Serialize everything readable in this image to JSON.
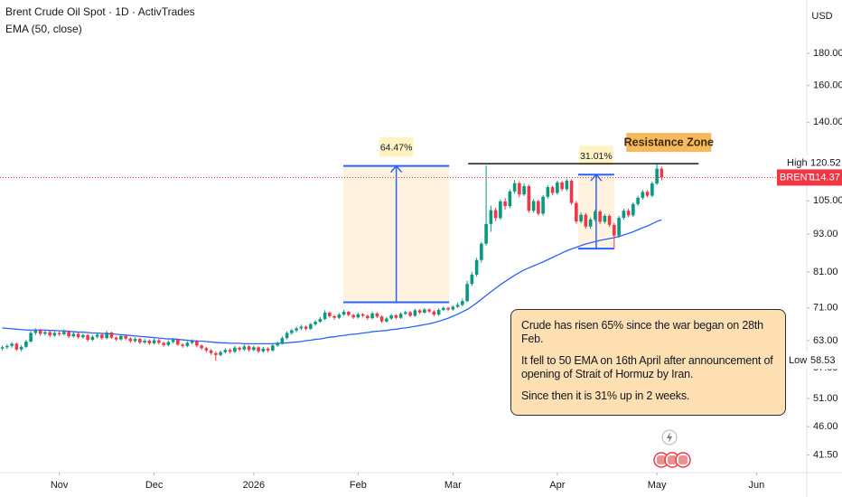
{
  "chart_data": {
    "type": "candlestick",
    "title": "Brent Crude Oil Spot · 1D · ActivTrades",
    "axis_label": "USD",
    "log_scale": true,
    "grid": false,
    "xlim": [
      -0.5,
      169.6
    ],
    "xticks": [
      {
        "value": 12,
        "label": "Nov"
      },
      {
        "value": 32,
        "label": "Dec"
      },
      {
        "value": 53,
        "label": "2026"
      },
      {
        "value": 75,
        "label": "Feb"
      },
      {
        "value": 95,
        "label": "Mar"
      },
      {
        "value": 117,
        "label": "Apr"
      },
      {
        "value": 138,
        "label": "May"
      },
      {
        "value": 159,
        "label": "Jun"
      }
    ],
    "ylim": [
      38.9,
      218.8
    ],
    "yticks": [
      {
        "value": 180,
        "label": "180.00"
      },
      {
        "value": 160,
        "label": "160.00"
      },
      {
        "value": 140,
        "label": "140.00"
      },
      {
        "value": 105,
        "label": "105.00"
      },
      {
        "value": 93,
        "label": "93.00"
      },
      {
        "value": 81,
        "label": "81.00"
      },
      {
        "value": 71,
        "label": "71.00"
      },
      {
        "value": 63,
        "label": "63.00"
      },
      {
        "value": 57,
        "label": "57.00"
      },
      {
        "value": 51,
        "label": "51.00"
      },
      {
        "value": 46,
        "label": "46.00"
      },
      {
        "value": 41.5,
        "label": "41.50"
      }
    ],
    "series": [
      {
        "type": "candlestick",
        "up_color": "#089981",
        "down_color": "#f23645",
        "ohlc": [
          [
            61.2,
            61.9,
            60.8,
            61.5
          ],
          [
            61.5,
            62.2,
            61.1,
            61.8
          ],
          [
            61.8,
            62.7,
            61.4,
            62.3
          ],
          [
            62.3,
            62.6,
            60.7,
            61.0
          ],
          [
            61.0,
            62.0,
            60.6,
            61.6
          ],
          [
            61.6,
            63.2,
            61.3,
            62.8
          ],
          [
            62.8,
            65.3,
            62.5,
            64.8
          ],
          [
            64.8,
            65.9,
            64.3,
            65.4
          ],
          [
            65.4,
            65.8,
            64.2,
            64.6
          ],
          [
            64.6,
            65.5,
            64.2,
            65.0
          ],
          [
            65.0,
            65.3,
            63.8,
            64.2
          ],
          [
            64.2,
            65.2,
            63.9,
            64.8
          ],
          [
            64.8,
            65.2,
            64.1,
            64.5
          ],
          [
            64.5,
            65.6,
            64.2,
            65.1
          ],
          [
            65.1,
            65.4,
            63.6,
            64.0
          ],
          [
            64.0,
            65.0,
            63.7,
            64.6
          ],
          [
            64.6,
            64.9,
            63.4,
            63.8
          ],
          [
            63.8,
            64.7,
            63.5,
            64.3
          ],
          [
            64.3,
            64.6,
            62.8,
            63.2
          ],
          [
            63.2,
            64.3,
            62.9,
            63.9
          ],
          [
            63.9,
            64.9,
            63.5,
            64.4
          ],
          [
            64.4,
            64.7,
            63.2,
            63.6
          ],
          [
            63.6,
            65.3,
            63.3,
            64.9
          ],
          [
            64.9,
            65.1,
            63.4,
            63.7
          ],
          [
            63.7,
            64.0,
            62.9,
            63.3
          ],
          [
            63.3,
            64.5,
            63.0,
            64.1
          ],
          [
            64.1,
            64.4,
            63.1,
            63.5
          ],
          [
            63.5,
            63.8,
            62.5,
            62.9
          ],
          [
            62.9,
            63.8,
            62.6,
            63.4
          ],
          [
            63.4,
            63.7,
            62.2,
            62.6
          ],
          [
            62.6,
            63.4,
            62.3,
            63.0
          ],
          [
            63.0,
            63.3,
            62.0,
            62.4
          ],
          [
            62.4,
            63.5,
            62.1,
            63.1
          ],
          [
            63.1,
            63.4,
            62.1,
            62.5
          ],
          [
            62.5,
            62.8,
            61.6,
            62.0
          ],
          [
            62.0,
            63.1,
            61.7,
            62.7
          ],
          [
            62.7,
            63.6,
            62.4,
            63.2
          ],
          [
            63.2,
            63.5,
            61.8,
            62.1
          ],
          [
            62.1,
            62.4,
            61.4,
            61.8
          ],
          [
            61.8,
            62.9,
            61.5,
            62.5
          ],
          [
            62.5,
            63.3,
            62.2,
            62.9
          ],
          [
            62.9,
            63.2,
            61.5,
            61.9
          ],
          [
            61.9,
            62.2,
            60.9,
            61.3
          ],
          [
            61.3,
            61.6,
            60.4,
            60.8
          ],
          [
            60.8,
            61.1,
            59.8,
            60.2
          ],
          [
            60.2,
            60.6,
            58.53,
            59.8
          ],
          [
            59.8,
            60.8,
            59.5,
            60.4
          ],
          [
            60.4,
            61.3,
            60.1,
            60.9
          ],
          [
            60.9,
            61.2,
            60.1,
            60.5
          ],
          [
            60.5,
            61.8,
            60.2,
            61.4
          ],
          [
            61.4,
            61.7,
            60.6,
            61.0
          ],
          [
            61.0,
            62.1,
            60.7,
            61.7
          ],
          [
            61.7,
            62.0,
            60.5,
            60.9
          ],
          [
            60.9,
            61.9,
            60.6,
            61.5
          ],
          [
            61.5,
            61.8,
            60.2,
            60.6
          ],
          [
            60.6,
            61.6,
            60.3,
            61.2
          ],
          [
            61.2,
            61.5,
            60.4,
            60.8
          ],
          [
            60.8,
            62.3,
            60.5,
            61.9
          ],
          [
            61.9,
            62.8,
            61.6,
            62.4
          ],
          [
            62.4,
            64.0,
            62.1,
            63.6
          ],
          [
            63.6,
            65.2,
            63.3,
            64.8
          ],
          [
            64.8,
            65.8,
            64.4,
            65.4
          ],
          [
            65.4,
            66.3,
            65.0,
            65.9
          ],
          [
            65.9,
            66.8,
            65.5,
            66.3
          ],
          [
            66.3,
            66.6,
            65.4,
            65.8
          ],
          [
            65.8,
            67.3,
            65.5,
            66.9
          ],
          [
            66.9,
            67.9,
            66.5,
            67.5
          ],
          [
            67.5,
            68.7,
            67.2,
            68.2
          ],
          [
            68.2,
            70.4,
            67.9,
            69.8
          ],
          [
            69.8,
            70.1,
            68.5,
            68.9
          ],
          [
            68.9,
            69.2,
            68.0,
            68.5
          ],
          [
            68.5,
            69.7,
            68.2,
            69.3
          ],
          [
            69.3,
            70.5,
            69.0,
            70.0
          ],
          [
            70.0,
            70.3,
            68.8,
            69.2
          ],
          [
            69.2,
            69.5,
            68.2,
            68.6
          ],
          [
            68.6,
            69.8,
            68.3,
            69.4
          ],
          [
            69.4,
            69.7,
            68.6,
            69.0
          ],
          [
            69.0,
            69.3,
            68.0,
            68.4
          ],
          [
            68.4,
            70.0,
            68.1,
            69.6
          ],
          [
            69.6,
            69.9,
            68.4,
            68.8
          ],
          [
            68.8,
            69.1,
            67.2,
            67.6
          ],
          [
            67.6,
            68.7,
            67.3,
            68.3
          ],
          [
            68.3,
            69.5,
            68.0,
            69.1
          ],
          [
            69.1,
            69.4,
            68.1,
            68.5
          ],
          [
            68.5,
            69.9,
            68.2,
            69.5
          ],
          [
            69.5,
            70.3,
            69.2,
            69.9
          ],
          [
            69.9,
            70.2,
            68.6,
            69.0
          ],
          [
            69.0,
            70.8,
            68.7,
            70.4
          ],
          [
            70.4,
            70.7,
            69.4,
            69.8
          ],
          [
            69.8,
            71.0,
            69.5,
            70.6
          ],
          [
            70.6,
            70.9,
            69.7,
            70.1
          ],
          [
            70.1,
            70.4,
            68.9,
            69.3
          ],
          [
            69.3,
            70.9,
            69.0,
            70.5
          ],
          [
            70.5,
            71.4,
            70.2,
            71.0
          ],
          [
            71.0,
            71.3,
            70.2,
            70.6
          ],
          [
            70.6,
            71.7,
            70.3,
            71.3
          ],
          [
            71.3,
            72.4,
            71.0,
            71.8
          ],
          [
            71.8,
            73.5,
            71.4,
            72.8
          ],
          [
            72.8,
            78.4,
            72.5,
            77.5
          ],
          [
            77.5,
            81.0,
            76.9,
            80.2
          ],
          [
            80.2,
            85.3,
            79.6,
            84.6
          ],
          [
            84.6,
            90.4,
            83.8,
            89.8
          ],
          [
            89.8,
            119.5,
            89.2,
            96.5
          ],
          [
            96.5,
            103.2,
            93.8,
            101.5
          ],
          [
            101.5,
            102.4,
            97.5,
            98.6
          ],
          [
            98.6,
            105.6,
            98.0,
            104.8
          ],
          [
            104.8,
            106.1,
            101.7,
            103.0
          ],
          [
            103.0,
            109.5,
            102.2,
            108.7
          ],
          [
            108.7,
            113.4,
            107.8,
            112.0
          ],
          [
            112.0,
            112.8,
            106.4,
            107.5
          ],
          [
            107.5,
            111.9,
            106.9,
            110.8
          ],
          [
            110.8,
            111.5,
            100.6,
            101.3
          ],
          [
            101.3,
            105.7,
            100.5,
            104.9
          ],
          [
            104.9,
            105.4,
            99.6,
            100.2
          ],
          [
            100.2,
            107.3,
            99.5,
            106.6
          ],
          [
            106.6,
            111.2,
            105.9,
            110.4
          ],
          [
            110.4,
            111.0,
            107.2,
            108.1
          ],
          [
            108.1,
            113.1,
            107.4,
            112.3
          ],
          [
            112.3,
            113.0,
            108.8,
            109.6
          ],
          [
            109.6,
            113.9,
            108.9,
            113.0
          ],
          [
            113.0,
            113.6,
            103.5,
            104.2
          ],
          [
            104.2,
            105.0,
            96.6,
            97.4
          ],
          [
            97.4,
            100.6,
            96.8,
            99.8
          ],
          [
            99.8,
            100.4,
            94.9,
            95.6
          ],
          [
            95.6,
            98.8,
            94.8,
            98.1
          ],
          [
            98.1,
            101.8,
            97.4,
            101.0
          ],
          [
            101.0,
            101.6,
            96.5,
            97.3
          ],
          [
            97.3,
            100.1,
            96.6,
            99.4
          ],
          [
            99.4,
            100.0,
            95.5,
            96.2
          ],
          [
            96.2,
            96.9,
            88.2,
            92.5
          ],
          [
            92.5,
            99.4,
            91.8,
            98.7
          ],
          [
            98.7,
            102.0,
            98.0,
            101.3
          ],
          [
            101.3,
            102.1,
            98.9,
            99.6
          ],
          [
            99.6,
            104.5,
            99.0,
            103.8
          ],
          [
            103.8,
            107.0,
            103.1,
            106.2
          ],
          [
            106.2,
            109.3,
            105.5,
            108.5
          ],
          [
            108.5,
            109.2,
            106.3,
            107.0
          ],
          [
            107.0,
            112.7,
            106.4,
            111.9
          ],
          [
            111.9,
            120.52,
            111.2,
            118.1
          ],
          [
            118.1,
            119.0,
            113.2,
            114.37
          ]
        ]
      },
      {
        "type": "line",
        "name": "EMA (50, close)",
        "color": "#2962ff",
        "values": [
          66.0,
          65.9,
          65.8,
          65.7,
          65.6,
          65.5,
          65.5,
          65.5,
          65.5,
          65.5,
          65.4,
          65.4,
          65.3,
          65.3,
          65.2,
          65.1,
          65.0,
          65.0,
          64.9,
          64.8,
          64.8,
          64.7,
          64.6,
          64.6,
          64.5,
          64.4,
          64.3,
          64.2,
          64.1,
          64.0,
          63.9,
          63.8,
          63.7,
          63.6,
          63.5,
          63.4,
          63.4,
          63.3,
          63.2,
          63.1,
          63.0,
          62.9,
          62.9,
          62.8,
          62.7,
          62.6,
          62.5,
          62.5,
          62.4,
          62.4,
          62.4,
          62.3,
          62.3,
          62.3,
          62.3,
          62.3,
          62.3,
          62.3,
          62.4,
          62.4,
          62.5,
          62.6,
          62.7,
          62.8,
          63.0,
          63.1,
          63.3,
          63.4,
          63.6,
          63.8,
          63.9,
          64.1,
          64.2,
          64.4,
          64.5,
          64.6,
          64.8,
          64.9,
          65.1,
          65.2,
          65.3,
          65.4,
          65.6,
          65.7,
          65.9,
          66.0,
          66.2,
          66.4,
          66.6,
          66.8,
          67.0,
          67.3,
          67.6,
          68.0,
          68.4,
          68.9,
          69.4,
          70.0,
          70.6,
          71.4,
          72.3,
          73.3,
          74.3,
          75.3,
          76.3,
          77.3,
          78.2,
          79.1,
          80.0,
          80.8,
          81.6,
          82.2,
          82.8,
          83.4,
          84.0,
          84.7,
          85.4,
          86.1,
          86.8,
          87.5,
          88.1,
          88.6,
          89.2,
          89.7,
          90.1,
          90.5,
          90.9,
          91.2,
          91.5,
          91.8,
          92.2,
          92.7,
          93.2,
          93.8,
          94.5,
          95.2,
          95.8,
          96.6,
          97.4,
          98.0
        ]
      }
    ],
    "high": {
      "label": "High",
      "value": 120.52
    },
    "last": {
      "label": "BRENT",
      "value": 114.37,
      "color": "#f23645"
    },
    "low": {
      "label": "Low",
      "value": 58.53
    },
    "measures": [
      {
        "label": "64.47%",
        "x": [
          71.9,
          94.2
        ],
        "from": 72.5,
        "to": 119.3
      },
      {
        "label": "31.01%",
        "x": [
          121.4,
          129.0
        ],
        "from": 88.2,
        "to": 115.6
      }
    ],
    "resistance": {
      "label": "Resistance Zone",
      "value": 120.3,
      "x": [
        98.2,
        146.8
      ]
    },
    "note": [
      "Crude has risen 65% since the war began on 28th Feb.",
      "It fell to 50 EMA on 16th April after announcement of opening of Strait of Hormuz by Iran.",
      "Since then it is 31% up in 2 weeks."
    ]
  }
}
